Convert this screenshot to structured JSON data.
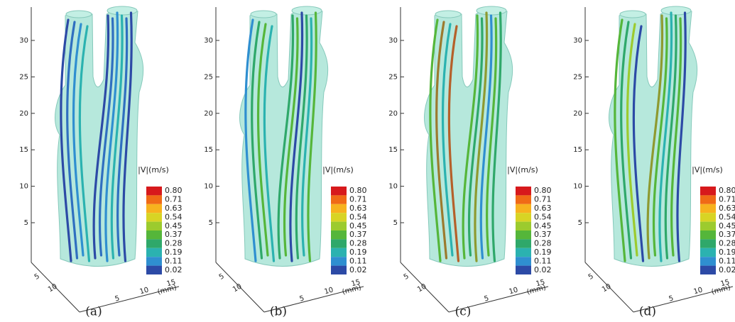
{
  "panels": [
    {
      "caption": "(a)"
    },
    {
      "caption": "(b)"
    },
    {
      "caption": "(c)"
    },
    {
      "caption": "(d)"
    }
  ],
  "axes": {
    "z_ticks": [
      "5",
      "10",
      "15",
      "20",
      "25",
      "30"
    ],
    "x_ticks": [
      "5",
      "10"
    ],
    "y_ticks": [
      "5",
      "10",
      "15"
    ],
    "unit": "(mm)"
  },
  "colorbar": {
    "title": "|V|(m/s)",
    "labels": [
      "0.80",
      "0.71",
      "0.63",
      "0.54",
      "0.45",
      "0.37",
      "0.28",
      "0.19",
      "0.11",
      "0.02"
    ]
  }
}
